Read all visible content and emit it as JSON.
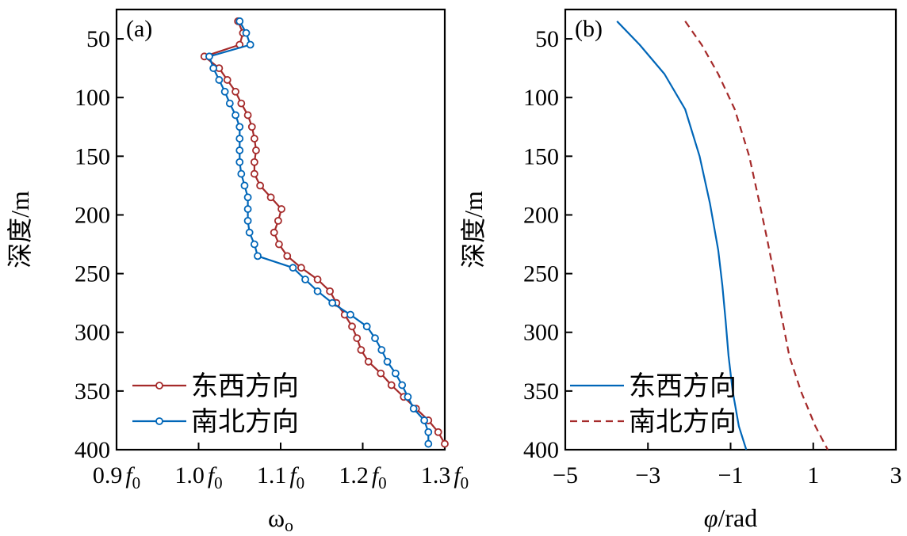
{
  "colors": {
    "red": "#A52A2A",
    "blue": "#0066B8",
    "axis": "#000000"
  },
  "chart_data": [
    {
      "panel_label": "(a)",
      "type": "line",
      "markers": "open-circle",
      "xlabel": "ωo",
      "ylabel": "深度/m",
      "xlim": [
        0.9,
        1.3
      ],
      "ylim": [
        400,
        25
      ],
      "y_inverted": true,
      "xtick_values": [
        0.9,
        1.0,
        1.1,
        1.2,
        1.3
      ],
      "xtick_labels": [
        "0.9",
        "1.0",
        "1.1",
        "1.2",
        "1.3"
      ],
      "xtick_unit": "f0",
      "ytick_values": [
        50,
        100,
        150,
        200,
        250,
        300,
        350,
        400
      ],
      "ytick_labels": [
        "50",
        "100",
        "150",
        "200",
        "250",
        "300",
        "350",
        "400"
      ],
      "legend_position": "bottom-left",
      "series": [
        {
          "name": "东西方向",
          "color": "red",
          "points": [
            [
              1.048,
              35
            ],
            [
              1.054,
              45
            ],
            [
              1.05,
              55
            ],
            [
              1.007,
              65
            ],
            [
              1.025,
              75
            ],
            [
              1.035,
              85
            ],
            [
              1.045,
              95
            ],
            [
              1.052,
              105
            ],
            [
              1.06,
              115
            ],
            [
              1.065,
              125
            ],
            [
              1.068,
              135
            ],
            [
              1.07,
              145
            ],
            [
              1.068,
              155
            ],
            [
              1.068,
              165
            ],
            [
              1.075,
              175
            ],
            [
              1.088,
              185
            ],
            [
              1.101,
              195
            ],
            [
              1.097,
              205
            ],
            [
              1.092,
              215
            ],
            [
              1.098,
              225
            ],
            [
              1.108,
              235
            ],
            [
              1.125,
              245
            ],
            [
              1.145,
              255
            ],
            [
              1.16,
              265
            ],
            [
              1.168,
              275
            ],
            [
              1.178,
              285
            ],
            [
              1.187,
              295
            ],
            [
              1.193,
              305
            ],
            [
              1.198,
              315
            ],
            [
              1.207,
              325
            ],
            [
              1.222,
              335
            ],
            [
              1.235,
              345
            ],
            [
              1.25,
              355
            ],
            [
              1.265,
              365
            ],
            [
              1.28,
              375
            ],
            [
              1.292,
              385
            ],
            [
              1.3,
              395
            ]
          ]
        },
        {
          "name": "南北方向",
          "color": "blue",
          "points": [
            [
              1.05,
              35
            ],
            [
              1.058,
              45
            ],
            [
              1.063,
              55
            ],
            [
              1.013,
              65
            ],
            [
              1.018,
              75
            ],
            [
              1.025,
              85
            ],
            [
              1.032,
              95
            ],
            [
              1.038,
              105
            ],
            [
              1.045,
              115
            ],
            [
              1.05,
              125
            ],
            [
              1.05,
              135
            ],
            [
              1.05,
              145
            ],
            [
              1.05,
              155
            ],
            [
              1.052,
              165
            ],
            [
              1.056,
              175
            ],
            [
              1.06,
              185
            ],
            [
              1.06,
              195
            ],
            [
              1.06,
              205
            ],
            [
              1.062,
              215
            ],
            [
              1.068,
              225
            ],
            [
              1.072,
              235
            ],
            [
              1.115,
              245
            ],
            [
              1.13,
              255
            ],
            [
              1.145,
              265
            ],
            [
              1.163,
              275
            ],
            [
              1.185,
              285
            ],
            [
              1.205,
              295
            ],
            [
              1.215,
              305
            ],
            [
              1.223,
              315
            ],
            [
              1.23,
              325
            ],
            [
              1.24,
              335
            ],
            [
              1.248,
              345
            ],
            [
              1.255,
              355
            ],
            [
              1.262,
              365
            ],
            [
              1.275,
              375
            ],
            [
              1.28,
              385
            ],
            [
              1.28,
              395
            ]
          ]
        }
      ]
    },
    {
      "panel_label": "(b)",
      "type": "line",
      "xlabel": "φ/rad",
      "ylabel": "深度/m",
      "xlim": [
        -5,
        3
      ],
      "ylim": [
        400,
        25
      ],
      "y_inverted": true,
      "xtick_values": [
        -5,
        -3,
        -1,
        1,
        3
      ],
      "xtick_labels": [
        "−5",
        "−3",
        "−1",
        "1",
        "3"
      ],
      "ytick_values": [
        50,
        100,
        150,
        200,
        250,
        300,
        350,
        400
      ],
      "ytick_labels": [
        "50",
        "100",
        "150",
        "200",
        "250",
        "300",
        "350",
        "400"
      ],
      "legend_position": "bottom-left",
      "series": [
        {
          "name": "东西方向",
          "color": "blue",
          "dash": "solid",
          "points": [
            [
              -3.75,
              35
            ],
            [
              -3.2,
              55
            ],
            [
              -2.6,
              80
            ],
            [
              -2.1,
              110
            ],
            [
              -1.75,
              150
            ],
            [
              -1.5,
              190
            ],
            [
              -1.3,
              230
            ],
            [
              -1.2,
              260
            ],
            [
              -1.12,
              290
            ],
            [
              -1.05,
              320
            ],
            [
              -0.95,
              350
            ],
            [
              -0.8,
              380
            ],
            [
              -0.62,
              400
            ]
          ]
        },
        {
          "name": "南北方向",
          "color": "red",
          "dash": "dashed",
          "points": [
            [
              -2.1,
              35
            ],
            [
              -1.7,
              55
            ],
            [
              -1.3,
              80
            ],
            [
              -0.9,
              110
            ],
            [
              -0.55,
              150
            ],
            [
              -0.3,
              190
            ],
            [
              -0.12,
              220
            ],
            [
              0.05,
              250
            ],
            [
              0.2,
              280
            ],
            [
              0.42,
              320
            ],
            [
              0.7,
              350
            ],
            [
              1.05,
              380
            ],
            [
              1.35,
              400
            ]
          ]
        }
      ]
    }
  ]
}
